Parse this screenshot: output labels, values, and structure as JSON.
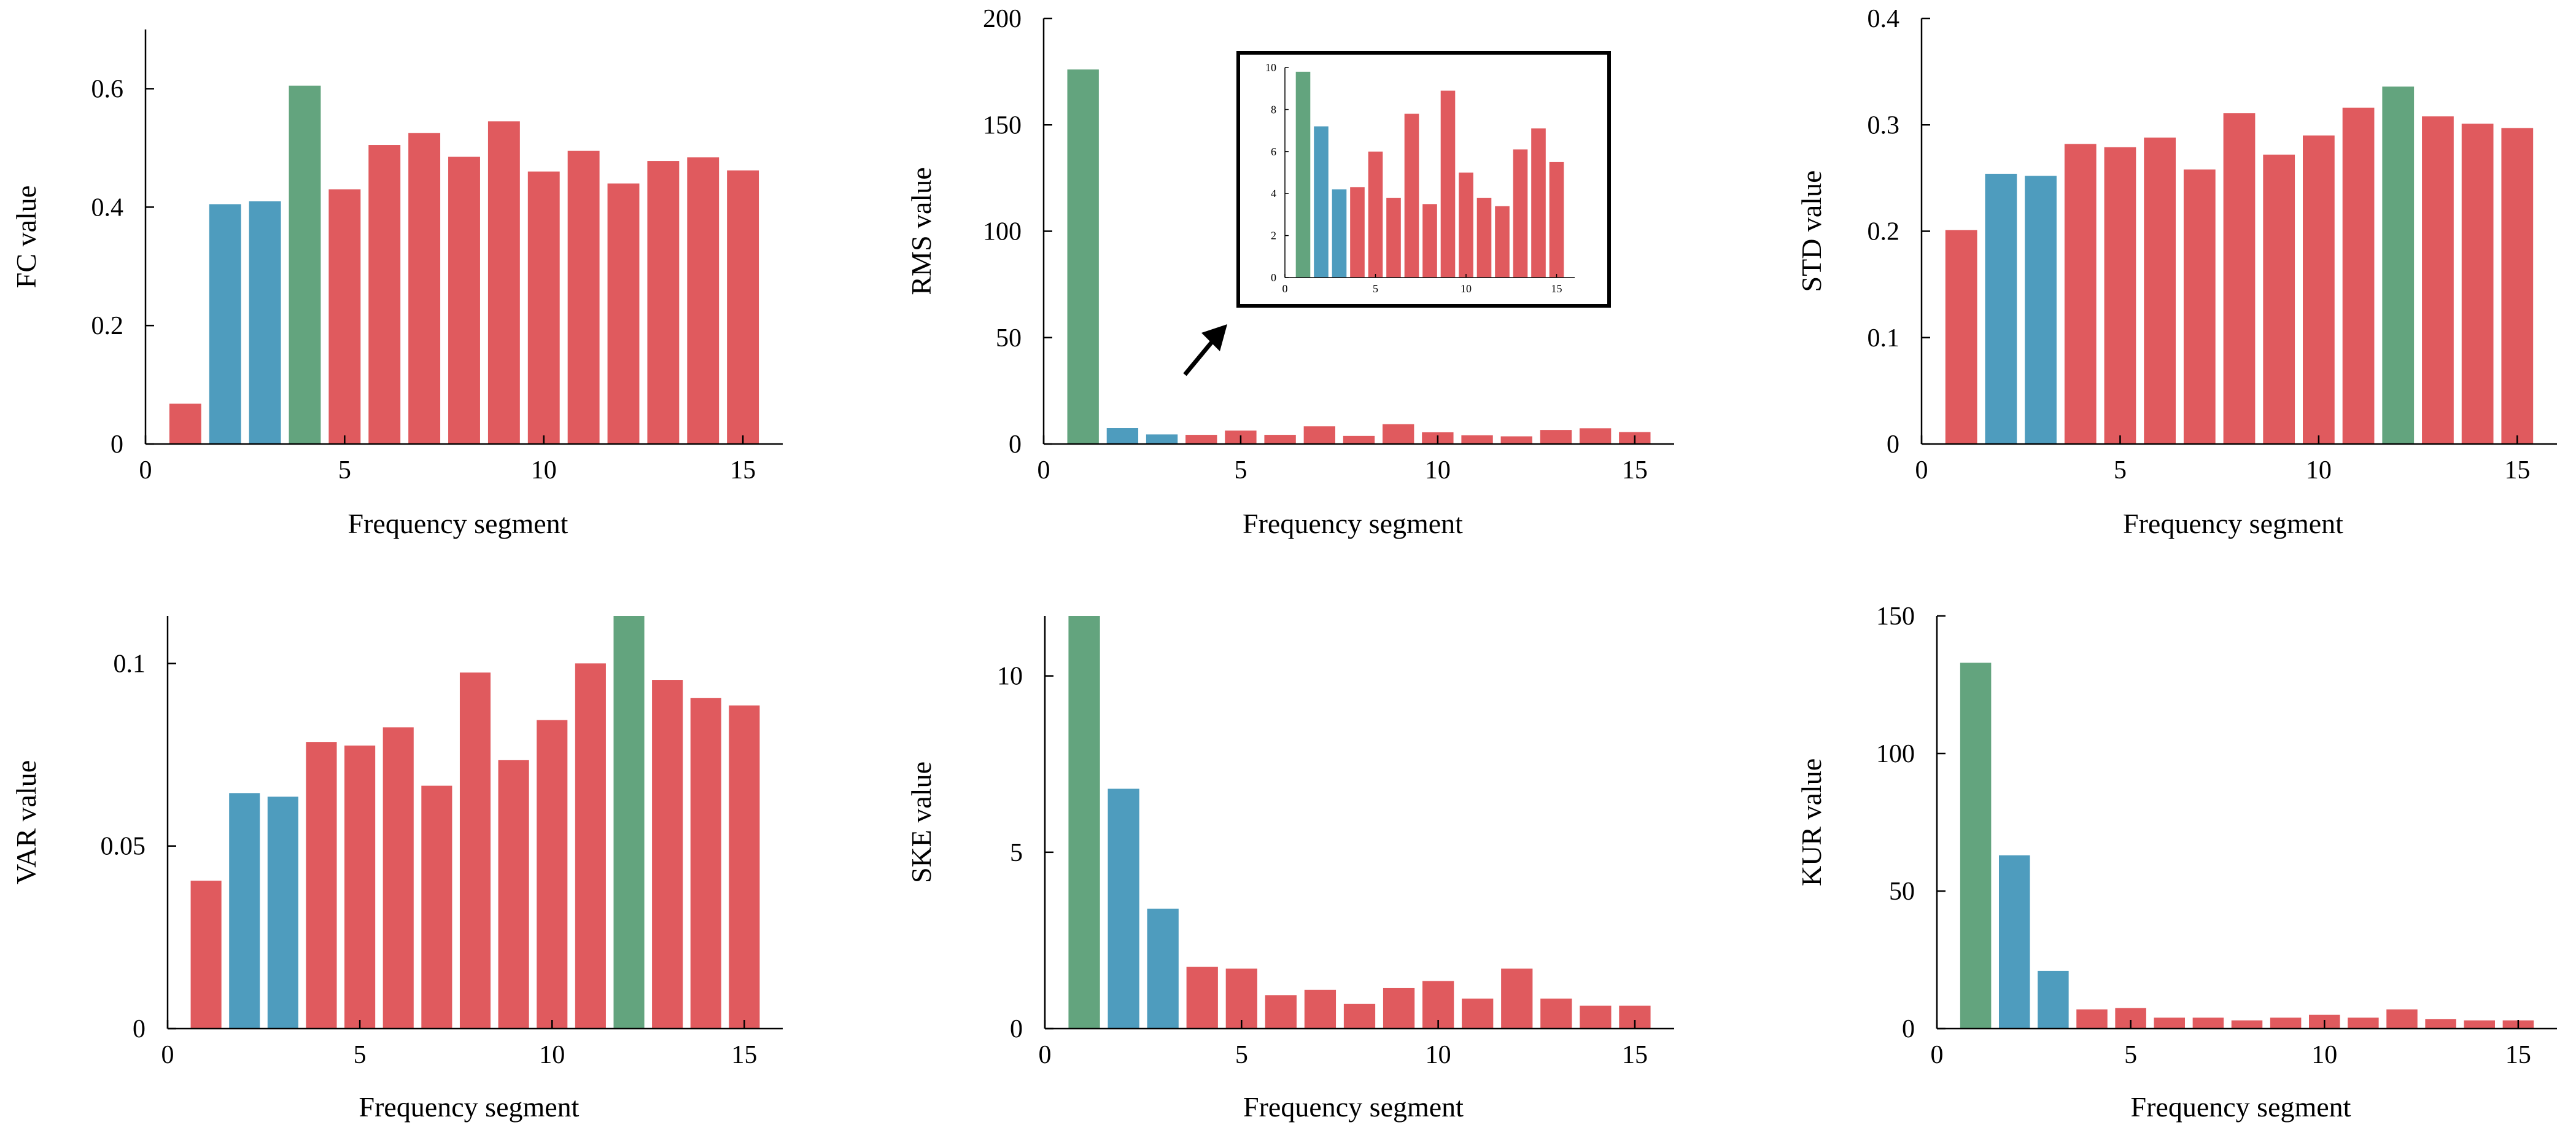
{
  "colors": {
    "red": "#e05a5e",
    "blue": "#4e9cbe",
    "green": "#63a47e",
    "axis": "#000000"
  },
  "chart_data": [
    {
      "type": "bar",
      "id": "fc",
      "title": "",
      "xlabel": "Frequency segment",
      "ylabel": "FC value",
      "x": [
        1,
        2,
        3,
        4,
        5,
        6,
        7,
        8,
        9,
        10,
        11,
        12,
        13,
        14,
        15
      ],
      "values": [
        0.068,
        0.405,
        0.41,
        0.605,
        0.43,
        0.505,
        0.525,
        0.485,
        0.545,
        0.46,
        0.495,
        0.44,
        0.478,
        0.484,
        0.462
      ],
      "colors": [
        "red",
        "blue",
        "blue",
        "green",
        "red",
        "red",
        "red",
        "red",
        "red",
        "red",
        "red",
        "red",
        "red",
        "red",
        "red"
      ],
      "xlim": [
        0,
        16
      ],
      "ylim": [
        0,
        0.7
      ],
      "xticks": [
        0,
        5,
        10,
        15
      ],
      "xtick_labels": [
        "0",
        "5",
        "10",
        "15"
      ],
      "yticks": [
        0,
        0.2,
        0.4,
        0.6
      ],
      "ytick_labels": [
        "0",
        "0.2",
        "0.4",
        "0.6"
      ]
    },
    {
      "type": "bar",
      "id": "rms",
      "title": "",
      "xlabel": "Frequency segment",
      "ylabel": "RMS value",
      "x": [
        1,
        2,
        3,
        4,
        5,
        6,
        7,
        8,
        9,
        10,
        11,
        12,
        13,
        14,
        15
      ],
      "values": [
        176,
        7.5,
        4.5,
        4.3,
        6.3,
        4.3,
        8.3,
        3.8,
        9.3,
        5.5,
        4.1,
        3.6,
        6.6,
        7.4,
        5.6
      ],
      "colors": [
        "green",
        "blue",
        "blue",
        "red",
        "red",
        "red",
        "red",
        "red",
        "red",
        "red",
        "red",
        "red",
        "red",
        "red",
        "red"
      ],
      "xlim": [
        0,
        16
      ],
      "ylim": [
        0,
        200
      ],
      "xticks": [
        0,
        5,
        10,
        15
      ],
      "xtick_labels": [
        "0",
        "5",
        "10",
        "15"
      ],
      "yticks": [
        0,
        50,
        100,
        150,
        200
      ],
      "ytick_labels": [
        "0",
        "50",
        "100",
        "150",
        "200"
      ],
      "inset": {
        "x": [
          1,
          2,
          3,
          4,
          5,
          6,
          7,
          8,
          9,
          10,
          11,
          12,
          13,
          14,
          15
        ],
        "values": [
          9.8,
          7.2,
          4.2,
          4.3,
          6.0,
          3.8,
          7.8,
          3.5,
          8.9,
          5.0,
          3.8,
          3.4,
          6.1,
          7.1,
          5.5
        ],
        "colors": [
          "green",
          "blue",
          "blue",
          "red",
          "red",
          "red",
          "red",
          "red",
          "red",
          "red",
          "red",
          "red",
          "red",
          "red",
          "red"
        ],
        "xlim": [
          0,
          16
        ],
        "ylim": [
          0,
          10
        ],
        "xticks": [
          0,
          5,
          10,
          15
        ],
        "xtick_labels": [
          "0",
          "5",
          "10",
          "15"
        ],
        "yticks": [
          0,
          2,
          4,
          6,
          8,
          10
        ],
        "ytick_labels": [
          "0",
          "2",
          "4",
          "6",
          "8",
          "10"
        ]
      }
    },
    {
      "type": "bar",
      "id": "std",
      "title": "",
      "xlabel": "Frequency segment",
      "ylabel": "STD value",
      "x": [
        1,
        2,
        3,
        4,
        5,
        6,
        7,
        8,
        9,
        10,
        11,
        12,
        13,
        14,
        15
      ],
      "values": [
        0.201,
        0.254,
        0.252,
        0.282,
        0.279,
        0.288,
        0.258,
        0.311,
        0.272,
        0.29,
        0.316,
        0.336,
        0.308,
        0.301,
        0.297
      ],
      "colors": [
        "red",
        "blue",
        "blue",
        "red",
        "red",
        "red",
        "red",
        "red",
        "red",
        "red",
        "red",
        "green",
        "red",
        "red",
        "red"
      ],
      "xlim": [
        0,
        16
      ],
      "ylim": [
        0,
        0.4
      ],
      "xticks": [
        0,
        5,
        10,
        15
      ],
      "xtick_labels": [
        "0",
        "5",
        "10",
        "15"
      ],
      "yticks": [
        0,
        0.1,
        0.2,
        0.3,
        0.4
      ],
      "ytick_labels": [
        "0",
        "0.1",
        "0.2",
        "0.3",
        "0.4"
      ]
    },
    {
      "type": "bar",
      "id": "var",
      "title": "",
      "xlabel": "Frequency segment",
      "ylabel": "VAR value",
      "x": [
        1,
        2,
        3,
        4,
        5,
        6,
        7,
        8,
        9,
        10,
        11,
        12,
        13,
        14,
        15
      ],
      "values": [
        0.0405,
        0.0645,
        0.0635,
        0.0785,
        0.0775,
        0.0825,
        0.0665,
        0.0975,
        0.0735,
        0.0845,
        0.1,
        0.113,
        0.0955,
        0.0905,
        0.0885
      ],
      "colors": [
        "red",
        "blue",
        "blue",
        "red",
        "red",
        "red",
        "red",
        "red",
        "red",
        "red",
        "red",
        "green",
        "red",
        "red",
        "red"
      ],
      "xlim": [
        0,
        16
      ],
      "ylim": [
        0,
        0.113
      ],
      "xticks": [
        0,
        5,
        10,
        15
      ],
      "xtick_labels": [
        "0",
        "5",
        "10",
        "15"
      ],
      "yticks": [
        0,
        0.05,
        0.1
      ],
      "ytick_labels": [
        "0",
        "0.05",
        "0.1"
      ]
    },
    {
      "type": "bar",
      "id": "ske",
      "title": "",
      "xlabel": "Frequency segment",
      "ylabel": "SKE value",
      "x": [
        1,
        2,
        3,
        4,
        5,
        6,
        7,
        8,
        9,
        10,
        11,
        12,
        13,
        14,
        15
      ],
      "values": [
        11.7,
        6.8,
        3.4,
        1.75,
        1.7,
        0.95,
        1.1,
        0.7,
        1.15,
        1.35,
        0.85,
        1.7,
        0.85,
        0.65,
        0.65
      ],
      "colors": [
        "green",
        "blue",
        "blue",
        "red",
        "red",
        "red",
        "red",
        "red",
        "red",
        "red",
        "red",
        "red",
        "red",
        "red",
        "red"
      ],
      "xlim": [
        0,
        16
      ],
      "ylim": [
        0,
        11.7
      ],
      "xticks": [
        0,
        5,
        10,
        15
      ],
      "xtick_labels": [
        "0",
        "5",
        "10",
        "15"
      ],
      "yticks": [
        0,
        5,
        10
      ],
      "ytick_labels": [
        "0",
        "5",
        "10"
      ]
    },
    {
      "type": "bar",
      "id": "kur",
      "title": "",
      "xlabel": "Frequency segment",
      "ylabel": "KUR value",
      "x": [
        1,
        2,
        3,
        4,
        5,
        6,
        7,
        8,
        9,
        10,
        11,
        12,
        13,
        14,
        15
      ],
      "values": [
        133,
        63,
        21,
        7,
        7.5,
        4,
        4,
        3,
        4,
        5,
        4,
        7,
        3.5,
        3,
        3
      ],
      "colors": [
        "green",
        "blue",
        "blue",
        "red",
        "red",
        "red",
        "red",
        "red",
        "red",
        "red",
        "red",
        "red",
        "red",
        "red",
        "red"
      ],
      "xlim": [
        0,
        16
      ],
      "ylim": [
        0,
        150
      ],
      "xticks": [
        0,
        5,
        10,
        15
      ],
      "xtick_labels": [
        "0",
        "5",
        "10",
        "15"
      ],
      "yticks": [
        0,
        50,
        100,
        150
      ],
      "ytick_labels": [
        "0",
        "50",
        "100",
        "150"
      ]
    }
  ]
}
